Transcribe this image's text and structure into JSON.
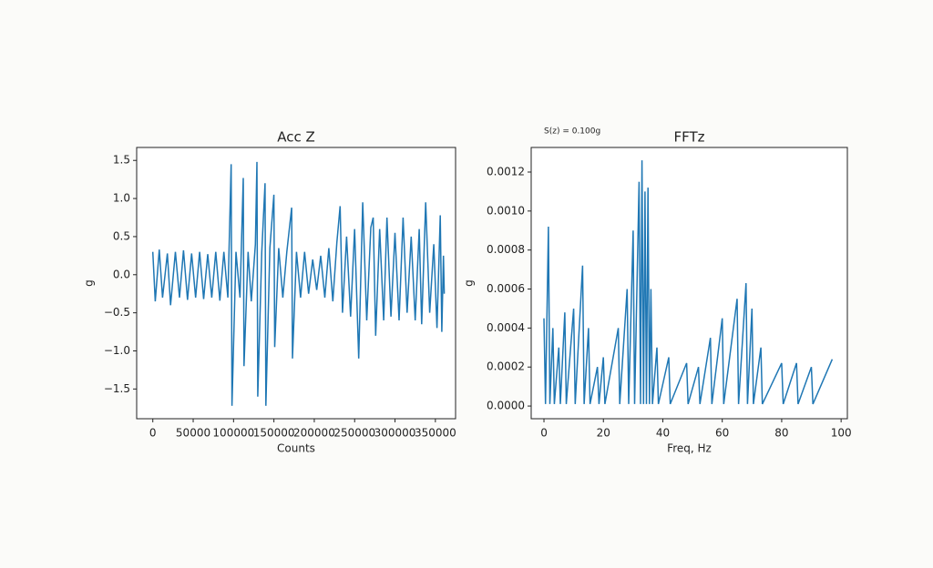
{
  "chart_data": [
    {
      "type": "line",
      "title": "Acc Z",
      "xlabel": "Counts",
      "ylabel": "g",
      "x": [
        0,
        3000,
        8000,
        12000,
        18000,
        22000,
        28000,
        33000,
        38000,
        43000,
        48000,
        53000,
        58000,
        63000,
        68000,
        73000,
        78000,
        83000,
        88000,
        93000,
        97000,
        98000,
        103000,
        108000,
        112000,
        113000,
        118000,
        122000,
        127000,
        129000,
        130000,
        135000,
        139000,
        140000,
        145000,
        150000,
        151000,
        156000,
        161000,
        166000,
        172000,
        173000,
        178000,
        183000,
        188000,
        193000,
        198000,
        203000,
        208000,
        213000,
        218000,
        223000,
        228000,
        232000,
        235000,
        240000,
        245000,
        250000,
        255000,
        260000,
        265000,
        270000,
        273000,
        276000,
        281000,
        286000,
        290000,
        295000,
        300000,
        305000,
        310000,
        315000,
        320000,
        325000,
        330000,
        333000,
        338000,
        343000,
        348000,
        352000,
        356000,
        358000,
        360000,
        361000
      ],
      "series": [
        {
          "color": "#1f77b4",
          "values": [
            0.3,
            -0.35,
            0.33,
            -0.3,
            0.28,
            -0.4,
            0.3,
            -0.3,
            0.32,
            -0.33,
            0.28,
            -0.3,
            0.3,
            -0.32,
            0.27,
            -0.3,
            0.3,
            -0.34,
            0.3,
            -0.3,
            1.45,
            -1.72,
            0.3,
            -0.3,
            1.27,
            -1.2,
            0.3,
            -0.35,
            0.4,
            1.48,
            -1.6,
            0.3,
            1.2,
            -1.72,
            0.35,
            1.05,
            -0.95,
            0.35,
            -0.3,
            0.3,
            0.88,
            -1.1,
            0.3,
            -0.3,
            0.3,
            -0.25,
            0.2,
            -0.2,
            0.25,
            -0.3,
            0.35,
            -0.35,
            0.42,
            0.9,
            -0.5,
            0.5,
            -0.55,
            0.6,
            -1.1,
            0.95,
            -0.6,
            0.62,
            0.75,
            -0.8,
            0.6,
            -0.6,
            0.75,
            -0.55,
            0.55,
            -0.6,
            0.75,
            -0.5,
            0.5,
            -0.6,
            0.6,
            -0.65,
            0.95,
            -0.5,
            0.4,
            -0.7,
            0.78,
            -0.75,
            0.25,
            -0.25
          ]
        }
      ],
      "xlim": [
        -20000,
        375000
      ],
      "ylim": [
        -1.89,
        1.67
      ],
      "xticks": [
        0,
        50000,
        100000,
        150000,
        200000,
        250000,
        300000,
        350000
      ],
      "yticks": [
        {
          "value": -1.5,
          "label": "−1.5"
        },
        {
          "value": -1.0,
          "label": "−1.0"
        },
        {
          "value": -0.5,
          "label": "−0.5"
        },
        {
          "value": 0,
          "label": "0.0"
        },
        0.5,
        {
          "value": 1.0,
          "label": "1.0"
        },
        1.5
      ]
    },
    {
      "type": "line",
      "title": "FFTz",
      "xlabel": "Freq, Hz",
      "ylabel": "g",
      "annotation": "S(z) = 0.100g",
      "x": [
        0,
        0.5,
        1.5,
        2,
        3,
        3.5,
        5,
        5.5,
        7,
        7.5,
        10,
        10.5,
        13,
        13.5,
        15,
        15.5,
        18,
        18.5,
        20,
        20.5,
        25,
        25.5,
        28,
        28.5,
        30,
        30.5,
        32,
        32.5,
        33,
        33.5,
        34,
        34.5,
        35,
        35.5,
        36,
        36.5,
        38,
        38.5,
        42,
        42.5,
        48,
        48.5,
        52,
        52.5,
        56,
        56.5,
        60,
        60.5,
        65,
        65.5,
        68,
        68.5,
        70,
        70.5,
        73,
        73.5,
        80,
        80.5,
        85,
        85.5,
        90,
        90.5,
        97
      ],
      "series": [
        {
          "color": "#1f77b4",
          "values": [
            0.00045,
            1e-05,
            0.00092,
            1e-05,
            0.0004,
            1e-05,
            0.0003,
            1e-05,
            0.00048,
            1e-05,
            0.0005,
            1e-05,
            0.00072,
            1e-05,
            0.0004,
            1e-05,
            0.0002,
            1e-05,
            0.00025,
            1e-05,
            0.0004,
            1e-05,
            0.0006,
            1e-05,
            0.0009,
            1e-05,
            0.00115,
            1e-05,
            0.00126,
            1e-05,
            0.0011,
            1e-05,
            0.00112,
            1e-05,
            0.0006,
            1e-05,
            0.0003,
            1e-05,
            0.00025,
            1e-05,
            0.00022,
            1e-05,
            0.0002,
            1e-05,
            0.00035,
            1e-05,
            0.00045,
            1e-05,
            0.00055,
            1e-05,
            0.00063,
            1e-05,
            0.0005,
            1e-05,
            0.0003,
            1e-05,
            0.00022,
            1e-05,
            0.00022,
            1e-05,
            0.0002,
            1e-05,
            0.00024
          ]
        }
      ],
      "xlim": [
        -4.3,
        102.1
      ],
      "ylim": [
        -6.5e-05,
        0.001326
      ],
      "xticks": [
        0,
        20,
        40,
        60,
        80,
        100
      ],
      "yticks": [
        {
          "value": 0,
          "label": "0.0000"
        },
        0.0002,
        0.0004,
        0.0006,
        0.0008,
        {
          "value": 0.001,
          "label": "0.0010"
        },
        0.0012
      ]
    }
  ]
}
